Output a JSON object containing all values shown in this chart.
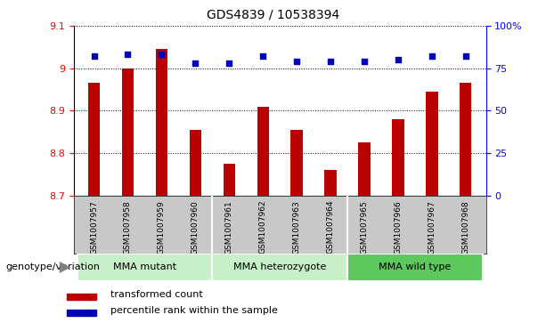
{
  "title": "GDS4839 / 10538394",
  "samples": [
    "GSM1007957",
    "GSM1007958",
    "GSM1007959",
    "GSM1007960",
    "GSM1007961",
    "GSM1007962",
    "GSM1007963",
    "GSM1007964",
    "GSM1007965",
    "GSM1007966",
    "GSM1007967",
    "GSM1007968"
  ],
  "transformed_count": [
    8.965,
    9.0,
    9.045,
    8.855,
    8.775,
    8.91,
    8.855,
    8.76,
    8.825,
    8.88,
    8.945,
    8.965
  ],
  "percentile_rank": [
    82,
    83,
    83,
    78,
    78,
    82,
    79,
    79,
    79,
    80,
    82,
    82
  ],
  "ylim_left": [
    8.7,
    9.1
  ],
  "ylim_right": [
    0,
    100
  ],
  "yticks_left": [
    8.7,
    8.8,
    8.9,
    9.0,
    9.1
  ],
  "yticks_right": [
    0,
    25,
    50,
    75,
    100
  ],
  "groups": [
    {
      "label": "MMA mutant",
      "start": 0,
      "end": 4,
      "color": "#C8F0C8"
    },
    {
      "label": "MMA heterozygote",
      "start": 4,
      "end": 8,
      "color": "#C8F0C8"
    },
    {
      "label": "MMA wild type",
      "start": 8,
      "end": 12,
      "color": "#5DC85D"
    }
  ],
  "bar_color": "#BB0000",
  "dot_color": "#0000BB",
  "bg_color": "#C8C8C8",
  "legend_label_red": "transformed count",
  "legend_label_blue": "percentile rank within the sample",
  "genotype_label": "genotype/variation",
  "title_fontsize": 10
}
